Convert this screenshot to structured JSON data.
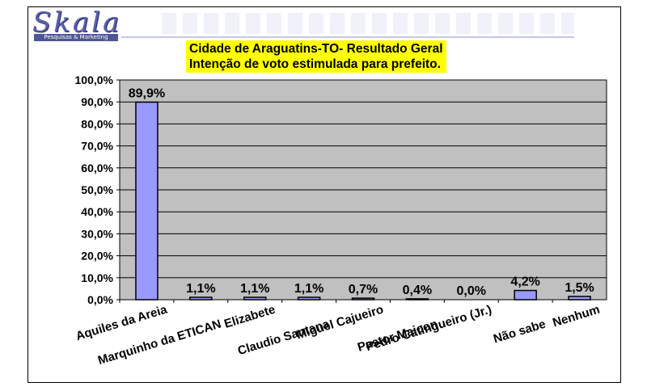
{
  "logo": {
    "text": "Skala",
    "sub": "Pesquisas & Marketing"
  },
  "title_lines": [
    "Cidade de Araguatins-TO- Resultado Geral",
    "Intenção de voto estimulada para prefeito."
  ],
  "colors": {
    "bar_fill": "#9999ff",
    "plot_bg": "#c0c0c0",
    "title_bg": "#ffff00"
  },
  "chart_data": {
    "type": "bar",
    "title": "Cidade de Araguatins-TO- Resultado Geral / Intenção de voto estimulada para prefeito.",
    "categories": [
      "Aquiles da Areia",
      "Marquinho da ETICAN",
      "Elizabete",
      "Claudio Santana",
      "Miguel Cajueiro",
      "Pastor Maicon",
      "Pedro Catingueiro (Jr.)",
      "Não sabe",
      "Nenhum"
    ],
    "values": [
      89.9,
      1.1,
      1.1,
      1.1,
      0.7,
      0.4,
      0.0,
      4.2,
      1.5
    ],
    "value_labels": [
      "89,9%",
      "1,1%",
      "1,1%",
      "1,1%",
      "0,7%",
      "0,4%",
      "0,0%",
      "4,2%",
      "1,5%"
    ],
    "ylim": [
      0,
      100
    ],
    "yticks": [
      "0,0%",
      "10,0%",
      "20,0%",
      "30,0%",
      "40,0%",
      "50,0%",
      "60,0%",
      "70,0%",
      "80,0%",
      "90,0%",
      "100,0%"
    ],
    "grid": true,
    "legend": "none"
  }
}
